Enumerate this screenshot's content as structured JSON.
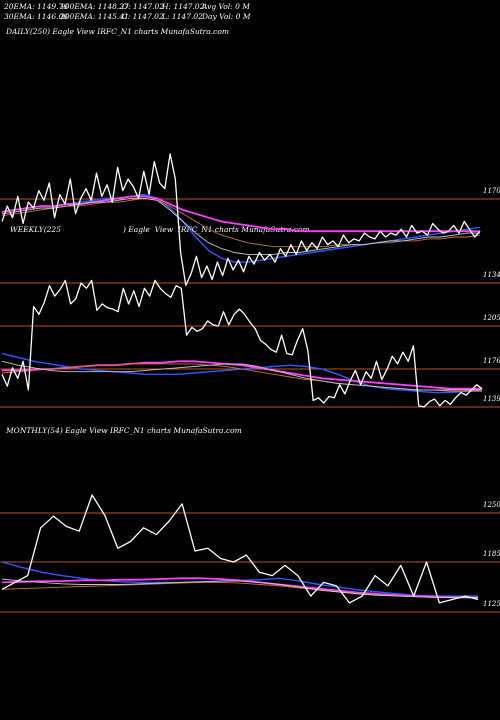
{
  "header": {
    "row1": [
      "20EMA: 1149.76",
      "100EMA: 1148.27",
      "O: 1147.02",
      "H: 1147.02",
      "Avg Vol: 0  M"
    ],
    "row2": [
      "30EMA: 1146.06",
      "200EMA: 1145.41",
      "C: 1147.02",
      "L: 1147.02",
      "Day Vol: 0  M"
    ]
  },
  "colors": {
    "background": "#000000",
    "price": "#ffffff",
    "level_line": "#b8561a",
    "ema_blue": "#2a5bff",
    "ema_magenta": "#ff40ff",
    "ema_orange": "#c07a2a",
    "ema_grey": "#c8c8c8"
  },
  "chart_data": [
    {
      "type": "line",
      "name": "daily",
      "title": "DAILY(250) Eagle  View  IRFC_N1 charts MunafaSutra.com",
      "y_ticks": [
        "1170",
        "1134"
      ],
      "ylim": [
        1120,
        1195
      ],
      "series": [
        {
          "name": "price",
          "values": [
            1158,
            1166,
            1160,
            1171,
            1157,
            1168,
            1165,
            1174,
            1169,
            1178,
            1160,
            1172,
            1167,
            1180,
            1162,
            1170,
            1175,
            1169,
            1183,
            1171,
            1177,
            1168,
            1186,
            1174,
            1180,
            1176,
            1170,
            1184,
            1172,
            1189,
            1178,
            1175,
            1193,
            1180,
            1142,
            1125,
            1131,
            1140,
            1129,
            1135,
            1128,
            1137,
            1130,
            1139,
            1133,
            1138,
            1132,
            1140,
            1136,
            1142,
            1138,
            1141,
            1137,
            1144,
            1140,
            1146,
            1141,
            1148,
            1143,
            1147,
            1144,
            1150,
            1146,
            1148,
            1145,
            1151,
            1147,
            1149,
            1148,
            1152,
            1150,
            1149,
            1153,
            1150,
            1152,
            1151,
            1154,
            1150,
            1156,
            1152,
            1153,
            1151,
            1157,
            1154,
            1152,
            1153,
            1156,
            1152,
            1158,
            1154,
            1150,
            1153
          ]
        },
        {
          "name": "ema-blue",
          "values": [
            1163,
            1164,
            1165,
            1166,
            1166,
            1167,
            1168,
            1169,
            1170,
            1170,
            1171,
            1172,
            1170,
            1165,
            1158,
            1150,
            1143,
            1139,
            1137,
            1137,
            1138,
            1139,
            1140,
            1141,
            1142,
            1143,
            1144,
            1145,
            1146,
            1147,
            1148,
            1149,
            1150,
            1151,
            1152,
            1153,
            1154,
            1155
          ]
        },
        {
          "name": "ema-magenta",
          "values": [
            1163,
            1164,
            1165,
            1166,
            1166,
            1167,
            1167,
            1168,
            1169,
            1170,
            1171,
            1171,
            1170,
            1167,
            1164,
            1162,
            1160,
            1158,
            1157,
            1156,
            1155,
            1154,
            1154,
            1153,
            1153,
            1153,
            1153,
            1153,
            1153,
            1153,
            1153,
            1153,
            1153,
            1153,
            1153,
            1153,
            1153,
            1153
          ]
        },
        {
          "name": "ema-orange",
          "values": [
            1161,
            1162,
            1163,
            1164,
            1165,
            1166,
            1166,
            1167,
            1168,
            1168,
            1169,
            1170,
            1169,
            1166,
            1162,
            1158,
            1154,
            1151,
            1149,
            1147,
            1146,
            1145,
            1145,
            1145,
            1145,
            1145,
            1146,
            1146,
            1146,
            1147,
            1147,
            1148,
            1148,
            1149,
            1149,
            1150,
            1150,
            1151
          ]
        },
        {
          "name": "ema-grey",
          "values": [
            1162,
            1163,
            1164,
            1165,
            1165,
            1166,
            1167,
            1168,
            1168,
            1169,
            1170,
            1170,
            1169,
            1164,
            1158,
            1152,
            1147,
            1144,
            1142,
            1141,
            1141,
            1141,
            1142,
            1142,
            1143,
            1144,
            1145,
            1146,
            1146,
            1147,
            1148,
            1148,
            1149,
            1150,
            1150,
            1151,
            1152,
            1152
          ]
        }
      ]
    },
    {
      "type": "line",
      "name": "weekly",
      "title": "WEEKLY(225                          ) Eagle  View  IRFC_N1 charts MunafaSutra.com",
      "y_ticks": [
        "1205",
        "1176",
        "1139"
      ],
      "ylim": [
        1125,
        1240
      ],
      "series": [
        {
          "name": "price",
          "values": [
            1160,
            1151,
            1165,
            1157,
            1170,
            1148,
            1212,
            1206,
            1215,
            1228,
            1220,
            1225,
            1232,
            1214,
            1218,
            1230,
            1226,
            1232,
            1209,
            1214,
            1211,
            1210,
            1208,
            1226,
            1214,
            1224,
            1212,
            1226,
            1220,
            1232,
            1226,
            1222,
            1219,
            1228,
            1226,
            1190,
            1196,
            1193,
            1195,
            1201,
            1198,
            1197,
            1208,
            1198,
            1206,
            1210,
            1206,
            1200,
            1195,
            1186,
            1183,
            1179,
            1177,
            1190,
            1176,
            1175,
            1186,
            1195,
            1178,
            1140,
            1142,
            1138,
            1143,
            1142,
            1152,
            1145,
            1155,
            1163,
            1152,
            1162,
            1157,
            1170,
            1156,
            1164,
            1174,
            1168,
            1177,
            1170,
            1182,
            1136,
            1135,
            1139,
            1141,
            1136,
            1140,
            1137,
            1142,
            1146,
            1144,
            1148,
            1152,
            1149
          ]
        },
        {
          "name": "ema-blue",
          "values": [
            1176,
            1173,
            1170,
            1168,
            1166,
            1164,
            1163,
            1162,
            1161,
            1160,
            1160,
            1160,
            1161,
            1162,
            1163,
            1164,
            1165,
            1166,
            1167,
            1166,
            1164,
            1160,
            1155,
            1151,
            1149,
            1148,
            1147,
            1146,
            1146,
            1147,
            1148
          ]
        },
        {
          "name": "ema-magenta",
          "values": [
            1163,
            1163,
            1164,
            1164,
            1165,
            1166,
            1167,
            1167,
            1168,
            1169,
            1169,
            1170,
            1170,
            1169,
            1168,
            1167,
            1165,
            1163,
            1161,
            1159,
            1157,
            1156,
            1155,
            1154,
            1153,
            1152,
            1151,
            1150,
            1149,
            1149,
            1149
          ]
        },
        {
          "name": "ema-orange",
          "values": [
            1161,
            1162,
            1163,
            1164,
            1165,
            1166,
            1167,
            1167,
            1168,
            1168,
            1168,
            1168,
            1168,
            1167,
            1166,
            1164,
            1162,
            1160,
            1158,
            1156,
            1155,
            1153,
            1152,
            1151,
            1150,
            1149,
            1148,
            1148,
            1147,
            1147,
            1147
          ]
        },
        {
          "name": "ema-grey",
          "values": [
            1170,
            1167,
            1165,
            1163,
            1162,
            1162,
            1162,
            1162,
            1162,
            1163,
            1164,
            1165,
            1166,
            1167,
            1168,
            1168,
            1166,
            1163,
            1160,
            1157,
            1155,
            1153,
            1152,
            1151,
            1150,
            1149,
            1148,
            1148,
            1148,
            1148,
            1148
          ]
        }
      ]
    },
    {
      "type": "line",
      "name": "monthly",
      "title": "MONTHLY(54) Eagle  View  IRFC_N1 charts MunafaSutra.com",
      "y_ticks": [
        "1250",
        "1185",
        "1125"
      ],
      "ylim": [
        1095,
        1300
      ],
      "series": [
        {
          "name": "price",
          "values": [
            1140,
            1150,
            1160,
            1230,
            1247,
            1232,
            1225,
            1278,
            1248,
            1200,
            1210,
            1230,
            1220,
            1240,
            1265,
            1196,
            1200,
            1185,
            1180,
            1190,
            1165,
            1160,
            1175,
            1160,
            1130,
            1150,
            1145,
            1120,
            1130,
            1160,
            1145,
            1175,
            1130,
            1180,
            1120,
            1125,
            1130,
            1125
          ]
        },
        {
          "name": "ema-blue",
          "values": [
            1180,
            1172,
            1165,
            1160,
            1156,
            1153,
            1151,
            1150,
            1150,
            1150,
            1151,
            1152,
            1153,
            1154,
            1156,
            1152,
            1147,
            1143,
            1139,
            1136,
            1133,
            1131,
            1130,
            1130,
            1130
          ]
        },
        {
          "name": "ema-magenta",
          "values": [
            1150,
            1151,
            1152,
            1152,
            1153,
            1153,
            1154,
            1154,
            1155,
            1156,
            1156,
            1155,
            1153,
            1150,
            1147,
            1144,
            1141,
            1138,
            1135,
            1133,
            1131,
            1130,
            1129,
            1128,
            1128
          ]
        },
        {
          "name": "ema-orange",
          "values": [
            1140,
            1141,
            1142,
            1143,
            1144,
            1145,
            1146,
            1147,
            1148,
            1149,
            1150,
            1150,
            1149,
            1147,
            1145,
            1142,
            1139,
            1136,
            1134,
            1132,
            1130,
            1129,
            1128,
            1128,
            1128
          ]
        },
        {
          "name": "ema-grey",
          "values": [
            1155,
            1152,
            1150,
            1148,
            1147,
            1147,
            1147,
            1148,
            1149,
            1150,
            1151,
            1152,
            1152,
            1150,
            1147,
            1143,
            1139,
            1136,
            1133,
            1131,
            1130,
            1129,
            1128,
            1128,
            1128
          ]
        }
      ]
    }
  ]
}
